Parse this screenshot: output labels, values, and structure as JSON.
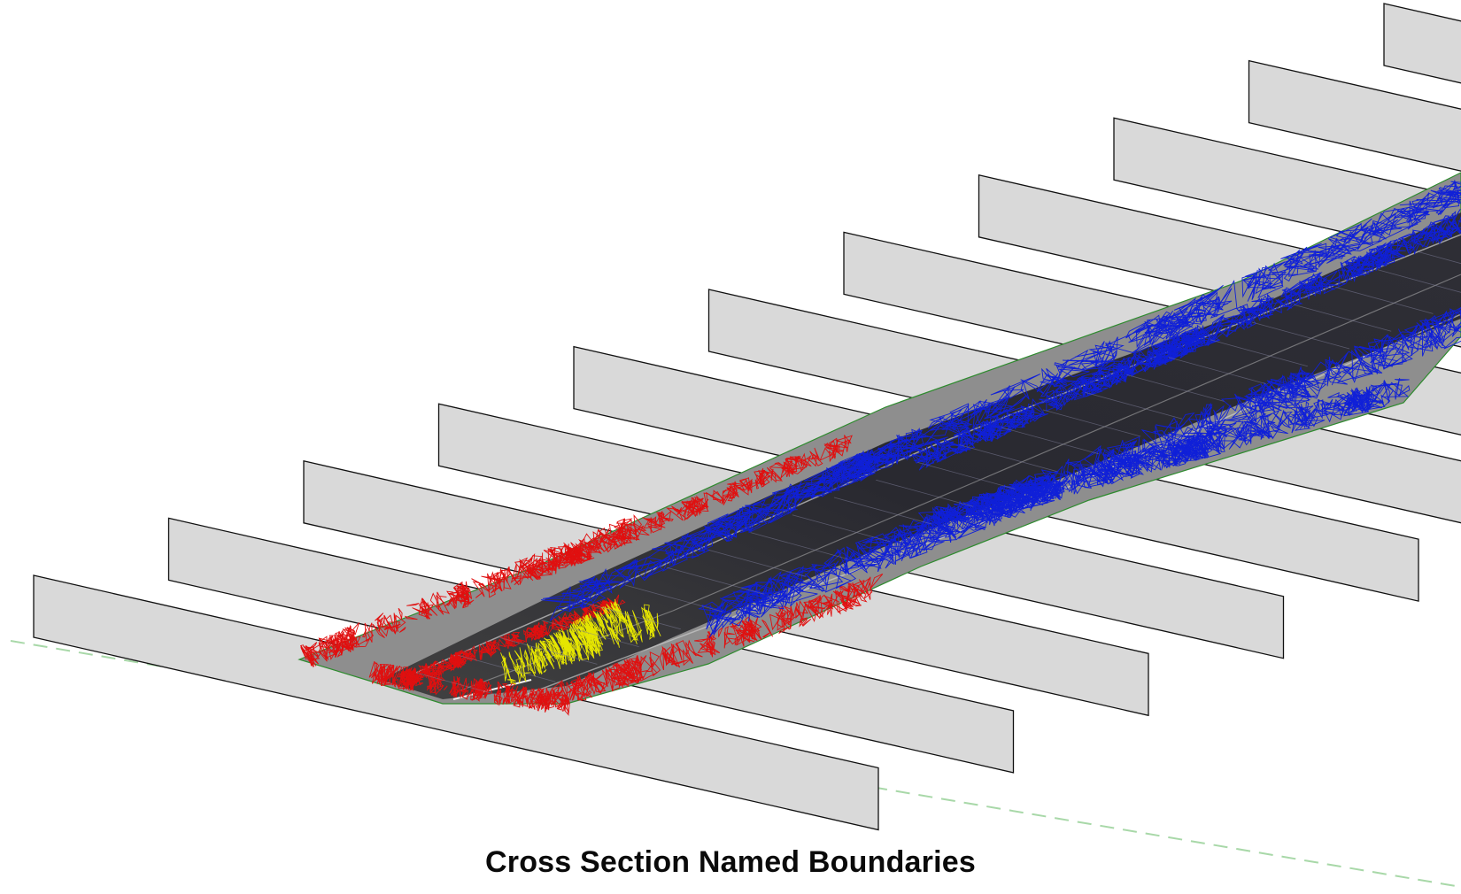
{
  "caption": "Cross Section Named Boundaries",
  "colors": {
    "background": "#ffffff",
    "panel_fill": "#d9d9d9",
    "panel_stroke": "#111111",
    "left_boundary": "#e01010",
    "right_boundary": "#1020d8",
    "interior_boundary": "#e6e600",
    "corridor_surface": "#1e1e28",
    "baseline": "#a8d8a8"
  },
  "scene": {
    "section_count": 11,
    "baseline_style": "dashed"
  }
}
